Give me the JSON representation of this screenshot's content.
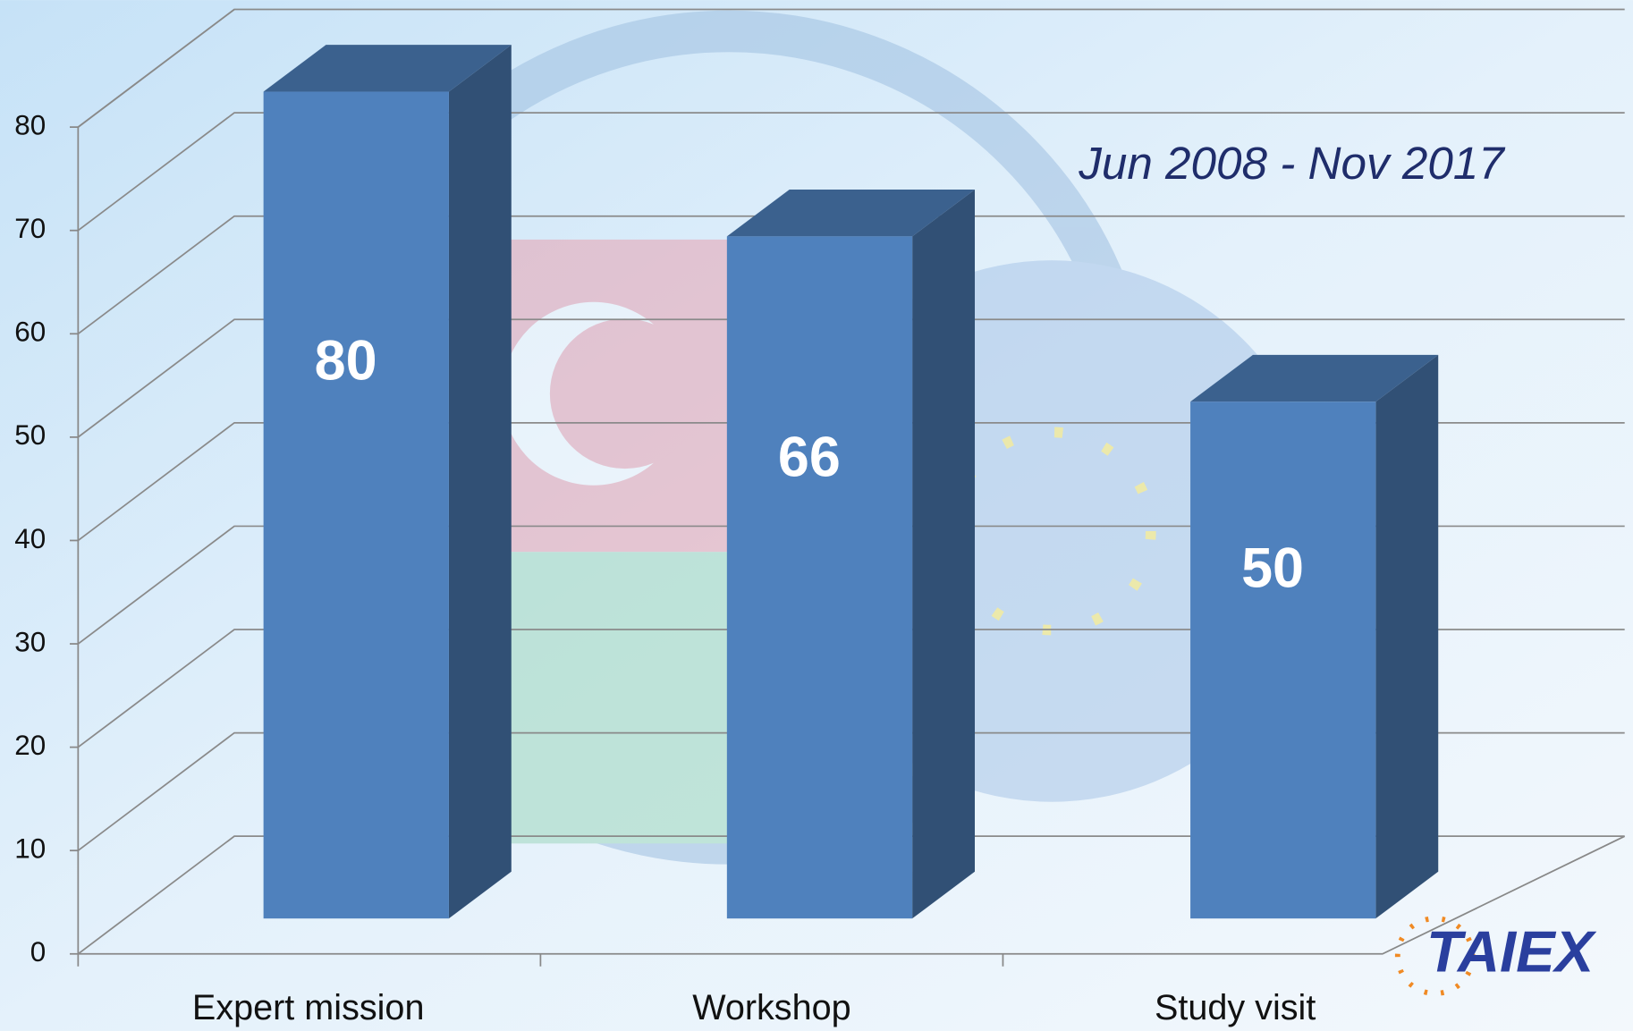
{
  "chart_data": {
    "type": "bar3d",
    "subtitle": "Jun 2008 - Nov 2017",
    "categories": [
      "Expert mission",
      "Workshop",
      "Study visit"
    ],
    "values": [
      80,
      66,
      50
    ],
    "color": "#4f81bd",
    "ylim": [
      0,
      80
    ],
    "yticks": [
      0,
      10,
      20,
      30,
      40,
      50,
      60,
      70,
      80
    ],
    "grid": true,
    "logo": "TAIEX"
  }
}
